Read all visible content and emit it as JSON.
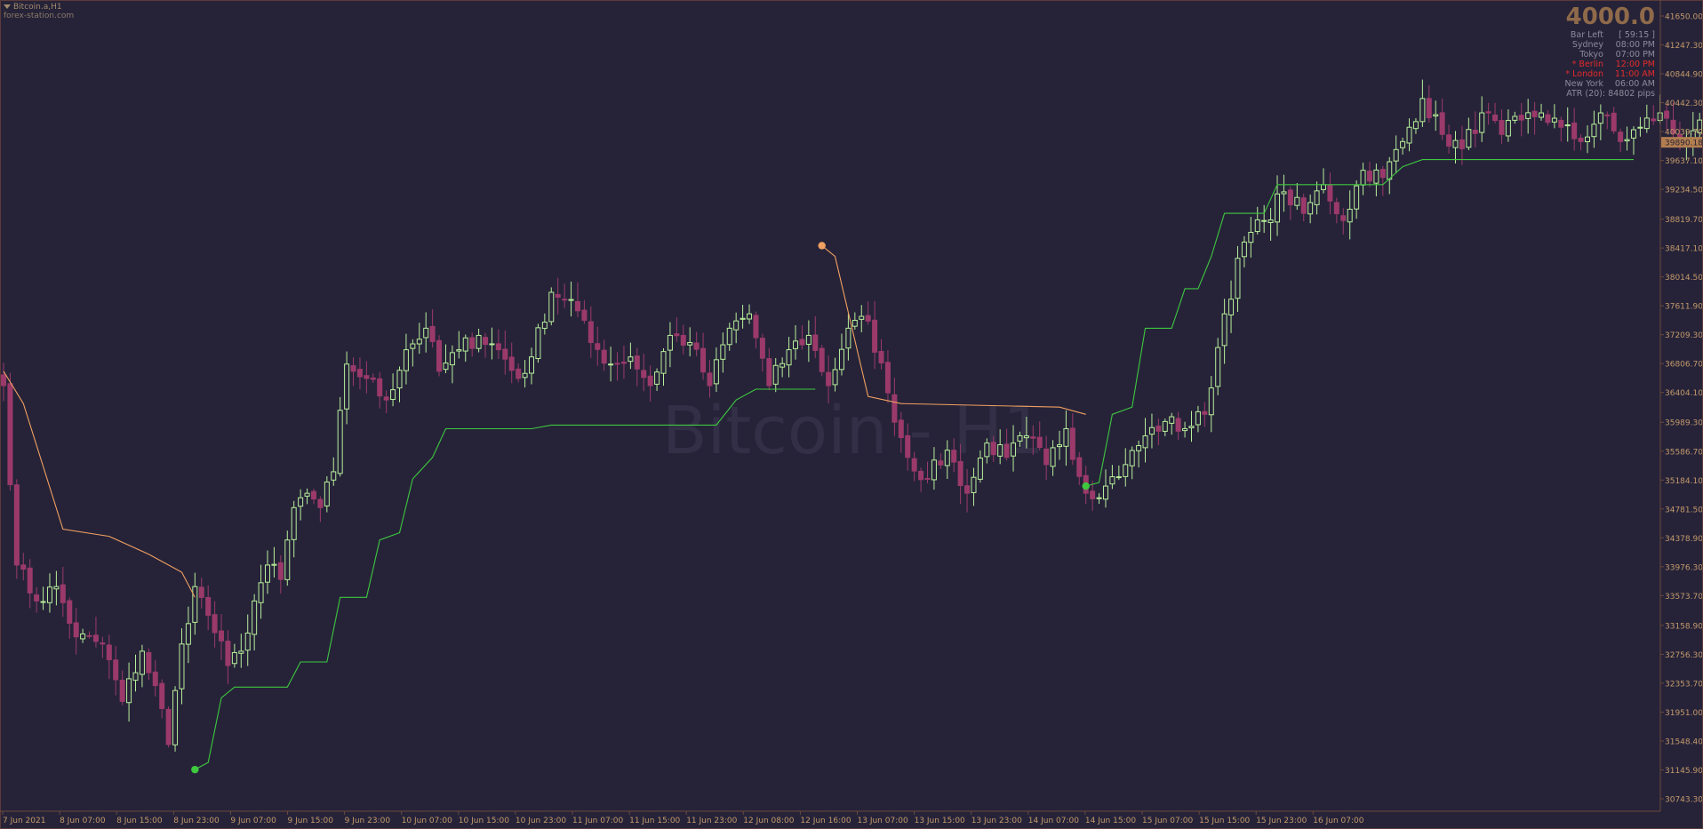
{
  "symbol": "Bitcoin.a,H1",
  "source": "forex-station.com",
  "watermark": "Bitcoin - H1",
  "info_panel": {
    "value": "4000.0",
    "rows": [
      {
        "label": "Bar Left",
        "value": "[ 59:15 ]",
        "highlight": false
      },
      {
        "label": "Sydney",
        "value": "08:00 PM",
        "highlight": false
      },
      {
        "label": "Tokyo",
        "value": "07:00 PM",
        "highlight": false
      },
      {
        "label": "* Berlin",
        "value": "12:00 PM",
        "highlight": true
      },
      {
        "label": "* London",
        "value": "11:00 AM",
        "highlight": true
      },
      {
        "label": "New York",
        "value": "06:00 AM",
        "highlight": false
      }
    ],
    "atr": "ATR (20): 84802 pips"
  },
  "colors": {
    "background": "#262339",
    "bull": "#b8ef9a",
    "bear": "#9b3a6a",
    "stop_up": "#3ec83e",
    "stop_down": "#f0a060",
    "axis_text": "#c49a6a",
    "current_price_bg": "#b27e50"
  },
  "chart_data": {
    "type": "candlestick",
    "ylim": [
      30743.3,
      41650.0
    ],
    "y_ticks": [
      "41650.00",
      "41247.30",
      "40844.90",
      "40442.30",
      "40039.70",
      "39637.10",
      "39234.50",
      "38819.70",
      "38417.10",
      "38014.50",
      "37611.90",
      "37209.30",
      "36806.70",
      "36404.10",
      "35989.30",
      "35586.70",
      "35184.10",
      "34781.50",
      "34378.90",
      "33976.30",
      "33573.70",
      "33158.90",
      "32756.30",
      "32353.70",
      "31951.00",
      "31548.40",
      "31145.90",
      "30743.30"
    ],
    "current_price": "39890.18",
    "x_labels": [
      "7 Jun 2021",
      "8 Jun 07:00",
      "8 Jun 15:00",
      "8 Jun 23:00",
      "9 Jun 07:00",
      "9 Jun 15:00",
      "9 Jun 23:00",
      "10 Jun 07:00",
      "10 Jun 15:00",
      "10 Jun 23:00",
      "11 Jun 07:00",
      "11 Jun 15:00",
      "11 Jun 23:00",
      "12 Jun 08:00",
      "12 Jun 16:00",
      "13 Jun 07:00",
      "13 Jun 15:00",
      "13 Jun 23:00",
      "14 Jun 07:00",
      "14 Jun 15:00",
      "15 Jun 07:00",
      "15 Jun 15:00",
      "15 Jun 23:00",
      "16 Jun 07:00"
    ],
    "close_anchors": [
      [
        0,
        36500
      ],
      [
        2,
        34000
      ],
      [
        5,
        33500
      ],
      [
        8,
        33700
      ],
      [
        11,
        33000
      ],
      [
        15,
        32900
      ],
      [
        18,
        32100
      ],
      [
        21,
        32800
      ],
      [
        24,
        32000
      ],
      [
        25,
        31500
      ],
      [
        27,
        32900
      ],
      [
        29,
        33700
      ],
      [
        31,
        33300
      ],
      [
        34,
        32600
      ],
      [
        36,
        32800
      ],
      [
        38,
        33500
      ],
      [
        40,
        34000
      ],
      [
        42,
        33800
      ],
      [
        44,
        34800
      ],
      [
        46,
        35000
      ],
      [
        48,
        34800
      ],
      [
        50,
        35300
      ],
      [
        52,
        36800
      ],
      [
        55,
        36600
      ],
      [
        58,
        36300
      ],
      [
        61,
        37000
      ],
      [
        64,
        37300
      ],
      [
        66,
        36700
      ],
      [
        69,
        37000
      ],
      [
        72,
        37200
      ],
      [
        75,
        37000
      ],
      [
        78,
        36600
      ],
      [
        80,
        36900
      ],
      [
        83,
        37800
      ],
      [
        86,
        37700
      ],
      [
        89,
        37100
      ],
      [
        92,
        36800
      ],
      [
        95,
        36900
      ],
      [
        98,
        36500
      ],
      [
        101,
        37200
      ],
      [
        104,
        37100
      ],
      [
        107,
        36500
      ],
      [
        110,
        37300
      ],
      [
        113,
        37500
      ],
      [
        116,
        36500
      ],
      [
        119,
        37000
      ],
      [
        122,
        37200
      ],
      [
        125,
        36500
      ],
      [
        128,
        37300
      ],
      [
        131,
        37400
      ],
      [
        134,
        36400
      ],
      [
        137,
        35500
      ],
      [
        140,
        35200
      ],
      [
        143,
        35600
      ],
      [
        146,
        35000
      ],
      [
        149,
        35700
      ],
      [
        152,
        35500
      ],
      [
        155,
        35800
      ],
      [
        158,
        35400
      ],
      [
        161,
        35900
      ],
      [
        164,
        35000
      ],
      [
        167,
        35100
      ],
      [
        170,
        35400
      ],
      [
        173,
        35800
      ],
      [
        176,
        36000
      ],
      [
        179,
        35900
      ],
      [
        182,
        36100
      ],
      [
        185,
        37500
      ],
      [
        188,
        38500
      ],
      [
        191,
        38800
      ],
      [
        194,
        39200
      ],
      [
        197,
        38900
      ],
      [
        200,
        39300
      ],
      [
        203,
        38800
      ],
      [
        206,
        39500
      ],
      [
        209,
        39400
      ],
      [
        212,
        39900
      ],
      [
        215,
        40500
      ],
      [
        218,
        40000
      ],
      [
        221,
        39800
      ],
      [
        224,
        40300
      ],
      [
        227,
        40000
      ],
      [
        230,
        40200
      ],
      [
        233,
        40300
      ],
      [
        236,
        40100
      ],
      [
        239,
        39900
      ],
      [
        242,
        40300
      ],
      [
        245,
        39900
      ],
      [
        248,
        40100
      ],
      [
        251,
        40300
      ],
      [
        254,
        39900
      ],
      [
        257,
        40200
      ],
      [
        260,
        39900
      ],
      [
        263,
        40100
      ],
      [
        266,
        40100
      ],
      [
        269,
        39950
      ],
      [
        271,
        39890
      ]
    ],
    "stop_series": [
      {
        "name": "",
        "direction": "down",
        "points": [
          [
            0,
            36700
          ],
          [
            3,
            36250
          ],
          [
            9,
            34500
          ],
          [
            16,
            34400
          ],
          [
            22,
            34150
          ],
          [
            27,
            33900
          ],
          [
            29,
            33550
          ]
        ]
      },
      {
        "name": "",
        "direction": "up",
        "points": [
          [
            29,
            31150
          ],
          [
            31,
            31250
          ],
          [
            33,
            32150
          ],
          [
            35,
            32300
          ],
          [
            43,
            32300
          ],
          [
            45,
            32650
          ],
          [
            49,
            32650
          ],
          [
            51,
            33550
          ],
          [
            55,
            33550
          ],
          [
            57,
            34350
          ],
          [
            60,
            34450
          ],
          [
            62,
            35200
          ],
          [
            65,
            35500
          ],
          [
            67,
            35900
          ],
          [
            74,
            35900
          ],
          [
            80,
            35900
          ],
          [
            83,
            35950
          ],
          [
            90,
            35950
          ],
          [
            108,
            35950
          ],
          [
            111,
            36300
          ],
          [
            114,
            36450
          ],
          [
            123,
            36450
          ]
        ]
      },
      {
        "name": "",
        "direction": "down",
        "points": [
          [
            124,
            38450
          ],
          [
            126,
            38300
          ],
          [
            131,
            36350
          ],
          [
            136,
            36250
          ],
          [
            160,
            36200
          ],
          [
            164,
            36100
          ]
        ]
      },
      {
        "name": "",
        "direction": "up",
        "points": [
          [
            164,
            35100
          ],
          [
            166,
            35150
          ],
          [
            168,
            36100
          ],
          [
            171,
            36200
          ],
          [
            173,
            37300
          ],
          [
            177,
            37300
          ],
          [
            179,
            37850
          ],
          [
            181,
            37850
          ],
          [
            183,
            38300
          ],
          [
            185,
            38900
          ],
          [
            191,
            38900
          ],
          [
            193,
            39300
          ],
          [
            206,
            39300
          ],
          [
            209,
            39300
          ],
          [
            212,
            39550
          ],
          [
            215,
            39650
          ],
          [
            225,
            39650
          ],
          [
            247,
            39650
          ]
        ]
      }
    ],
    "stop_dots": [
      {
        "bar": 29,
        "value": 31150,
        "direction": "up"
      },
      {
        "bar": 124,
        "value": 38450,
        "direction": "down"
      },
      {
        "bar": 164,
        "value": 35100,
        "direction": "up"
      }
    ]
  }
}
